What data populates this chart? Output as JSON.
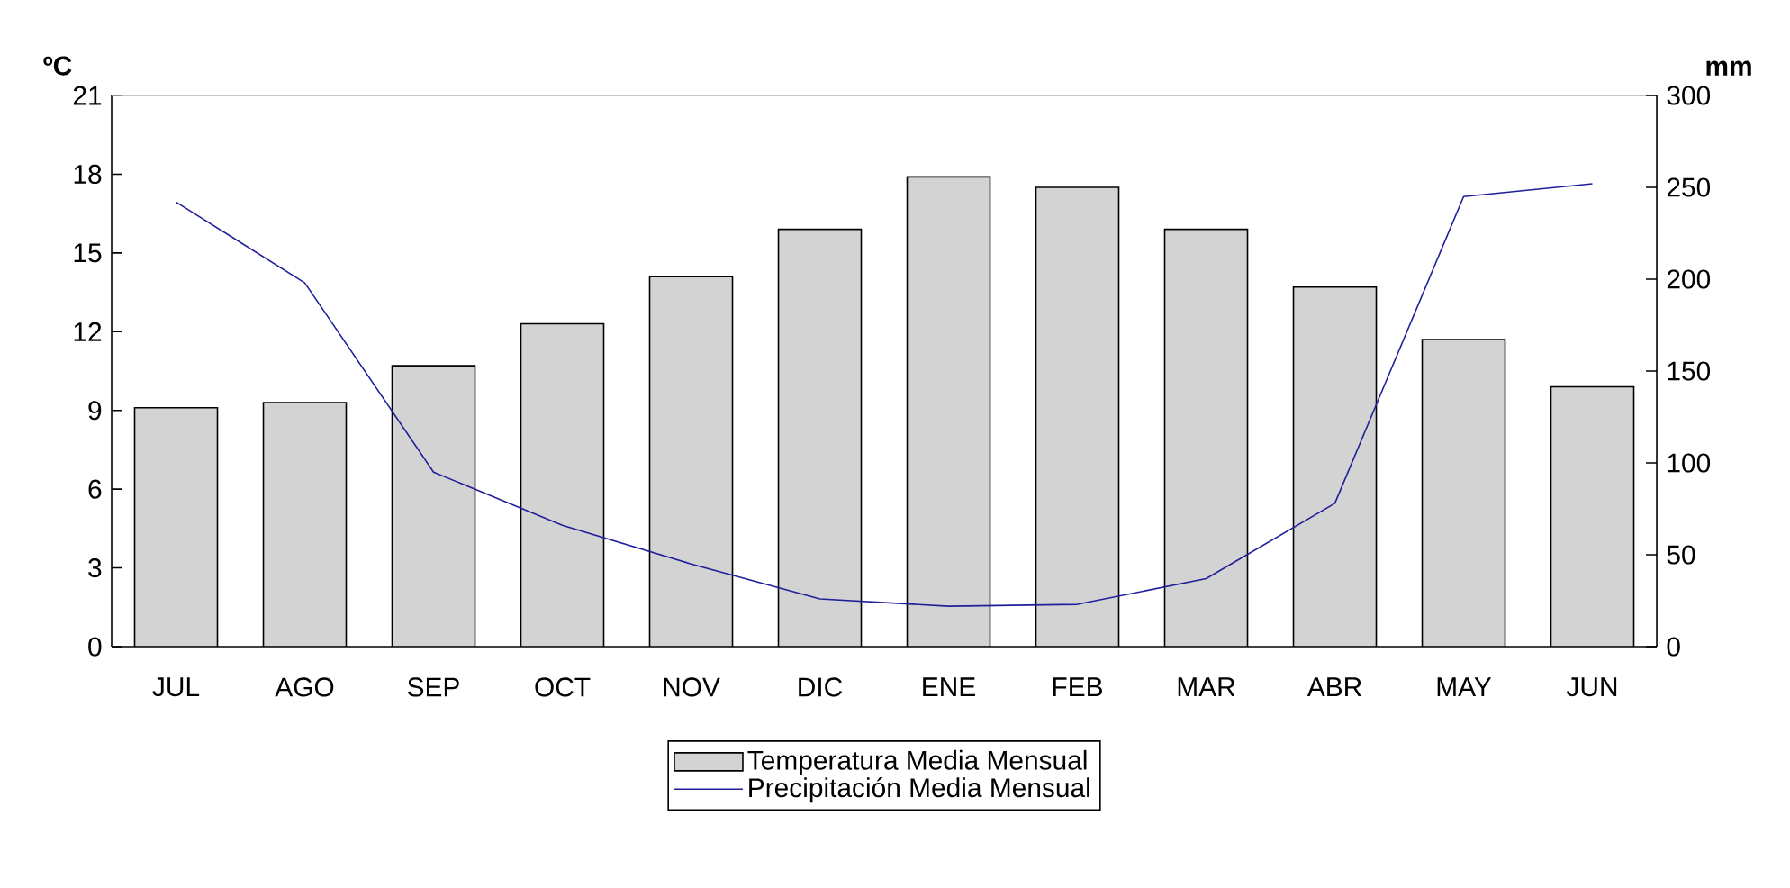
{
  "chart_data": {
    "type": "bar",
    "ylabel": "ºC",
    "y2label": "mm",
    "categories": [
      "JUL",
      "AGO",
      "SEP",
      "OCT",
      "NOV",
      "DIC",
      "ENE",
      "FEB",
      "MAR",
      "ABR",
      "MAY",
      "JUN"
    ],
    "series": [
      {
        "name": "Temperatura Media Mensual",
        "color": "#d3d3d3",
        "values": [
          9.1,
          9.3,
          10.7,
          12.3,
          14.1,
          15.9,
          17.9,
          17.5,
          15.9,
          13.7,
          11.7,
          9.9
        ]
      },
      {
        "name": "Precipitación Media Mensual",
        "type": "line",
        "axis": "y2",
        "color": "#1f1f9a",
        "values": [
          242,
          198,
          95,
          66,
          45,
          26,
          22,
          23,
          37,
          78,
          245,
          252
        ]
      }
    ],
    "ylim": [
      0,
      21
    ],
    "yticks": [
      0,
      3,
      6,
      9,
      12,
      15,
      18,
      21
    ],
    "y2lim": [
      0,
      300
    ],
    "y2ticks": [
      0,
      50,
      100,
      150,
      200,
      250,
      300
    ],
    "legend": "bottom",
    "grid": false,
    "marker": "none",
    "line_style": "solid"
  }
}
